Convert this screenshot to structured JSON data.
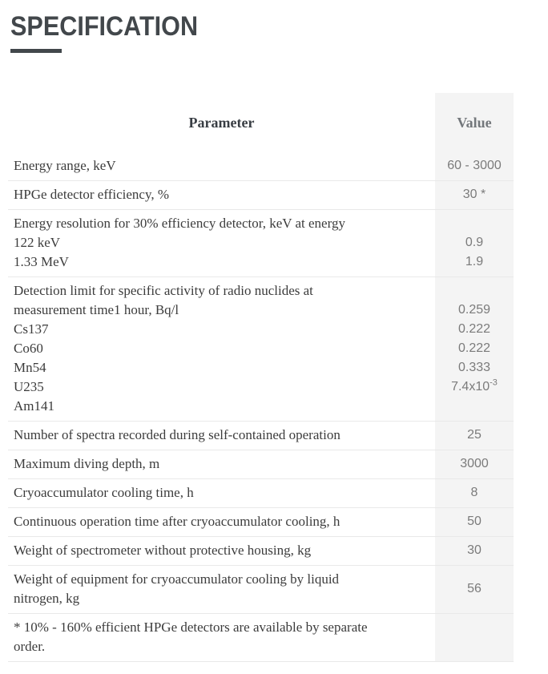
{
  "page_title": "SPECIFICATION",
  "colors": {
    "title_accent": "#42474b",
    "parameter_text": "#3c3c3c",
    "value_text": "#7b7b7b",
    "value_column_bg": "#f4f4f4",
    "row_border": "#e9e9e9"
  },
  "table": {
    "header": {
      "parameter": "Parameter",
      "value": "Value"
    },
    "rows": [
      {
        "parameter_lines": [
          "Energy range, keV"
        ],
        "values": [
          {
            "text": "60 - 3000"
          }
        ]
      },
      {
        "parameter_lines": [
          "HPGe detector efficiency, %"
        ],
        "values": [
          {
            "text": "30 *"
          }
        ]
      },
      {
        "parameter_lines": [
          "Energy resolution for 30% efficiency detector, keV at energy",
          "122 keV",
          "1.33 MeV"
        ],
        "value_valign": "bottom",
        "values": [
          {
            "text": "0.9"
          },
          {
            "text": "1.9"
          }
        ]
      },
      {
        "parameter_lines": [
          "Detection limit for specific activity of radio nuclides at",
          "measurement time1 hour, Bq/l",
          "Cs137",
          "Co60",
          "Mn54",
          "U235",
          "Am141"
        ],
        "values": [
          {
            "text": "0.259"
          },
          {
            "text": "0.222"
          },
          {
            "text": "0.222"
          },
          {
            "text": "0.333"
          },
          {
            "text": "7.4x10",
            "sup": "-3"
          }
        ]
      },
      {
        "parameter_lines": [
          "Number of spectra recorded during self-contained operation"
        ],
        "values": [
          {
            "text": "25"
          }
        ]
      },
      {
        "parameter_lines": [
          "Maximum diving depth, m"
        ],
        "values": [
          {
            "text": "3000"
          }
        ]
      },
      {
        "parameter_lines": [
          "Cryoaccumulator cooling time, h"
        ],
        "values": [
          {
            "text": "8"
          }
        ]
      },
      {
        "parameter_lines": [
          "Continuous operation time after cryoaccumulator cooling, h"
        ],
        "values": [
          {
            "text": "50"
          }
        ]
      },
      {
        "parameter_lines": [
          "Weight of spectrometer without protective housing, kg"
        ],
        "values": [
          {
            "text": "30"
          }
        ]
      },
      {
        "parameter_lines": [
          "Weight of equipment for cryoaccumulator cooling by liquid",
          "nitrogen, kg"
        ],
        "values": [
          {
            "text": "56"
          }
        ]
      },
      {
        "parameter_lines": [
          "* 10% - 160% efficient HPGe detectors are available by separate",
          "order."
        ],
        "values": []
      }
    ]
  }
}
